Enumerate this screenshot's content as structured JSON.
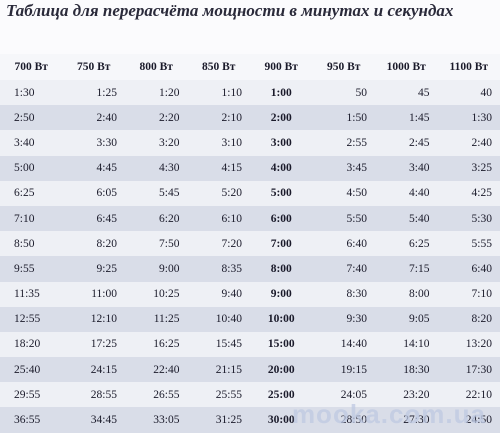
{
  "header": {
    "title": "Таблица для перерасчёта мощности в минутах и секундах"
  },
  "table": {
    "columns": [
      "700 Вт",
      "750 Вт",
      "800 Вт",
      "850 Вт",
      "900 Вт",
      "950 Вт",
      "1000 Вт",
      "1100 Вт"
    ],
    "rows": [
      [
        "1:30",
        "1:25",
        "1:20",
        "1:10",
        "1:00",
        "50",
        "45",
        "40"
      ],
      [
        "2:50",
        "2:40",
        "2:20",
        "2:10",
        "2:00",
        "1:50",
        "1:45",
        "1:30"
      ],
      [
        "3:40",
        "3:30",
        "3:20",
        "3:10",
        "3:00",
        "2:55",
        "2:45",
        "2:40"
      ],
      [
        "5:00",
        "4:45",
        "4:30",
        "4:15",
        "4:00",
        "3:45",
        "3:40",
        "3:25"
      ],
      [
        "6:25",
        "6:05",
        "5:45",
        "5:20",
        "5:00",
        "4:50",
        "4:40",
        "4:25"
      ],
      [
        "7:10",
        "6:45",
        "6:20",
        "6:10",
        "6:00",
        "5:50",
        "5:40",
        "5:30"
      ],
      [
        "8:50",
        "8:20",
        "7:50",
        "7:20",
        "7:00",
        "6:40",
        "6:25",
        "5:55"
      ],
      [
        "9:55",
        "9:25",
        "9:00",
        "8:35",
        "8:00",
        "7:40",
        "7:15",
        "6:40"
      ],
      [
        "11:35",
        "11:00",
        "10:25",
        "9:40",
        "9:00",
        "8:30",
        "8:00",
        "7:10"
      ],
      [
        "12:55",
        "12:10",
        "11:25",
        "10:40",
        "10:00",
        "9:30",
        "9:05",
        "8:20"
      ],
      [
        "18:20",
        "17:25",
        "16:25",
        "15:45",
        "15:00",
        "14:40",
        "14:10",
        "13:20"
      ],
      [
        "25:40",
        "24:15",
        "22:40",
        "21:15",
        "20:00",
        "19:15",
        "18:30",
        "17:30"
      ],
      [
        "29:55",
        "28:55",
        "26:55",
        "25:55",
        "25:00",
        "24:05",
        "23:20",
        "22:10"
      ],
      [
        "36:55",
        "34:45",
        "33:05",
        "31:25",
        "30:00",
        "28:50",
        "27:30",
        "24:50"
      ]
    ]
  },
  "watermark": "mooka.com.ua"
}
